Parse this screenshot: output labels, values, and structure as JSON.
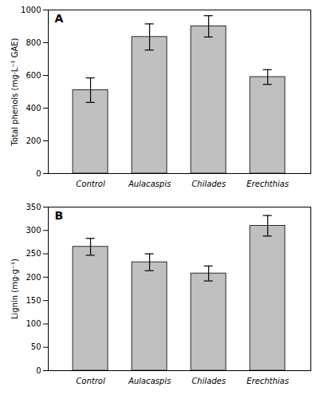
{
  "chart_data": [
    {
      "type": "bar",
      "annotations": [
        "A"
      ],
      "categories": [
        "Control",
        "Aulacaspis",
        "Chilades",
        "Erechthias"
      ],
      "values": [
        510,
        835,
        900,
        590
      ],
      "errors": [
        75,
        80,
        65,
        45
      ],
      "ylabel": "Total phenols (mg·L⁻¹ GAE)",
      "ylim": [
        0,
        1000
      ],
      "yticks": [
        0,
        200,
        400,
        600,
        800,
        1000
      ],
      "color": "#c0c0c0",
      "grid": false
    },
    {
      "type": "bar",
      "annotations": [
        "B"
      ],
      "categories": [
        "Control",
        "Aulacaspis",
        "Chilades",
        "Erechthias"
      ],
      "values": [
        265,
        232,
        208,
        310
      ],
      "errors": [
        18,
        18,
        16,
        22
      ],
      "ylabel": "Lignin (mg·g⁻¹)",
      "ylim": [
        0,
        350
      ],
      "yticks": [
        0,
        50,
        100,
        150,
        200,
        250,
        300,
        350
      ],
      "color": "#c0c0c0",
      "grid": false
    }
  ]
}
